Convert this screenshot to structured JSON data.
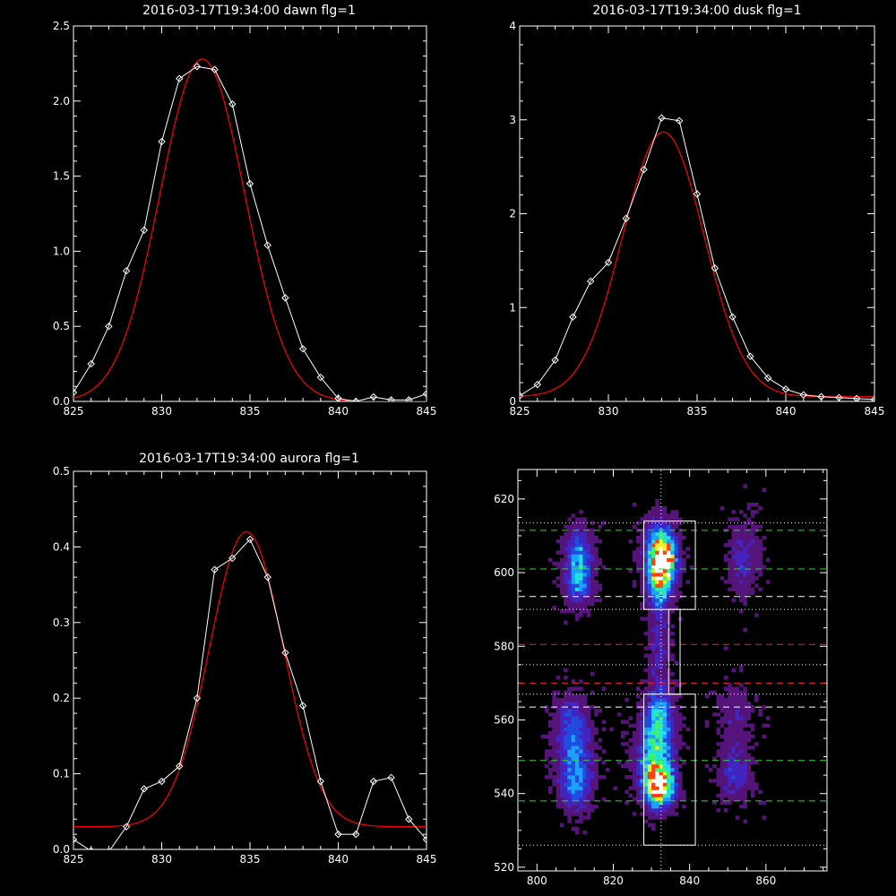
{
  "chart_data": [
    {
      "type": "line",
      "title": "2016-03-17T19:34:00 dawn flg=1",
      "xlim": [
        825,
        845
      ],
      "ylim": [
        0,
        2.5
      ],
      "xticks": [
        "825",
        "830",
        "835",
        "840",
        "845"
      ],
      "yticks": [
        "0.0",
        "0.5",
        "1.0",
        "1.5",
        "2.0",
        "2.5"
      ],
      "series": [
        {
          "color": "#ffffff",
          "marker": "diamond",
          "x": [
            825,
            826,
            827,
            828,
            829,
            830,
            831,
            832,
            833,
            834,
            835,
            836,
            837,
            838,
            839,
            840,
            841,
            842,
            843,
            844,
            845
          ],
          "y": [
            0.06,
            0.25,
            0.5,
            0.87,
            1.14,
            1.73,
            2.15,
            2.23,
            2.21,
            1.98,
            1.45,
            1.04,
            0.69,
            0.35,
            0.16,
            0.02,
            0.0,
            0.03,
            0.01,
            0.01,
            0.05
          ]
        },
        {
          "color": "#ff0000",
          "model": "gaussian",
          "amplitude": 2.28,
          "center": 832.3,
          "sigma": 2.4,
          "offset": 0.0
        }
      ]
    },
    {
      "type": "line",
      "title": "2016-03-17T19:34:00 dusk flg=1",
      "xlim": [
        825,
        845
      ],
      "ylim": [
        0,
        4
      ],
      "xticks": [
        "825",
        "830",
        "835",
        "840",
        "845"
      ],
      "yticks": [
        "0",
        "1",
        "2",
        "3",
        "4"
      ],
      "series": [
        {
          "color": "#ffffff",
          "marker": "diamond",
          "x": [
            825,
            826,
            827,
            828,
            829,
            830,
            831,
            832,
            833,
            834,
            835,
            836,
            837,
            838,
            839,
            840,
            841,
            842,
            843,
            844,
            845
          ],
          "y": [
            0.06,
            0.18,
            0.44,
            0.9,
            1.28,
            1.48,
            1.95,
            2.47,
            3.02,
            2.99,
            2.21,
            1.42,
            0.9,
            0.48,
            0.25,
            0.13,
            0.07,
            0.05,
            0.04,
            0.03,
            0.02
          ]
        },
        {
          "color": "#ff0000",
          "model": "gaussian",
          "amplitude": 2.82,
          "center": 833.1,
          "sigma": 2.3,
          "offset": 0.05
        }
      ]
    },
    {
      "type": "line",
      "title": "2016-03-17T19:34:00 aurora flg=1",
      "xlim": [
        825,
        845
      ],
      "ylim": [
        0,
        0.5
      ],
      "xticks": [
        "825",
        "830",
        "835",
        "840",
        "845"
      ],
      "yticks": [
        "0.0",
        "0.1",
        "0.2",
        "0.3",
        "0.4",
        "0.5"
      ],
      "series": [
        {
          "color": "#ffffff",
          "marker": "diamond",
          "x": [
            825,
            826,
            827,
            828,
            829,
            830,
            831,
            832,
            833,
            834,
            835,
            836,
            837,
            838,
            839,
            840,
            841,
            842,
            843,
            844,
            845
          ],
          "y": [
            0.013,
            -0.002,
            -0.003,
            0.03,
            0.08,
            0.09,
            0.11,
            0.2,
            0.37,
            0.385,
            0.41,
            0.36,
            0.26,
            0.19,
            0.09,
            0.02,
            0.02,
            0.09,
            0.095,
            0.04,
            0.013
          ]
        },
        {
          "color": "#ff0000",
          "model": "gaussian",
          "amplitude": 0.39,
          "center": 834.8,
          "sigma": 2.1,
          "offset": 0.03
        }
      ]
    },
    {
      "type": "heatmap",
      "title": "",
      "xlim": [
        795,
        876
      ],
      "ylim": [
        519,
        628
      ],
      "xticks": [
        "800",
        "820",
        "840",
        "860"
      ],
      "yticks": [
        "520",
        "540",
        "560",
        "580",
        "600",
        "620"
      ],
      "colormap": [
        "#000000",
        "#2a0a3a",
        "#55147a",
        "#4424c0",
        "#1f4de0",
        "#1ea0ff",
        "#20e0e0",
        "#40f070",
        "#f0f020",
        "#ff4010",
        "#ffffff"
      ],
      "blobs": [
        {
          "x": 811,
          "y": 604,
          "amp": 0.42,
          "sx": 2.2,
          "sy": 5.0
        },
        {
          "x": 811,
          "y": 597,
          "amp": 0.3,
          "sx": 2.2,
          "sy": 4.0
        },
        {
          "x": 810,
          "y": 550,
          "amp": 0.32,
          "sx": 3.2,
          "sy": 6.0
        },
        {
          "x": 809,
          "y": 560,
          "amp": 0.22,
          "sx": 2.6,
          "sy": 5.0
        },
        {
          "x": 810,
          "y": 541,
          "amp": 0.28,
          "sx": 2.5,
          "sy": 4.0
        },
        {
          "x": 833,
          "y": 603,
          "amp": 0.95,
          "sx": 2.2,
          "sy": 4.0
        },
        {
          "x": 832,
          "y": 607,
          "amp": 0.45,
          "sx": 2.6,
          "sy": 5.0
        },
        {
          "x": 832,
          "y": 596,
          "amp": 0.42,
          "sx": 2.2,
          "sy": 4.0
        },
        {
          "x": 832,
          "y": 542,
          "amp": 1.0,
          "sx": 2.4,
          "sy": 3.5
        },
        {
          "x": 831,
          "y": 550,
          "amp": 0.55,
          "sx": 3.0,
          "sy": 6.5
        },
        {
          "x": 832,
          "y": 561,
          "amp": 0.38,
          "sx": 2.4,
          "sy": 5.0
        },
        {
          "x": 832,
          "y": 580,
          "amp": 0.18,
          "sx": 1.8,
          "sy": 10.0
        },
        {
          "x": 854,
          "y": 604,
          "amp": 0.22,
          "sx": 2.5,
          "sy": 6.0
        },
        {
          "x": 852,
          "y": 546,
          "amp": 0.24,
          "sx": 2.8,
          "sy": 5.0
        },
        {
          "x": 852,
          "y": 562,
          "amp": 0.12,
          "sx": 3.0,
          "sy": 5.0
        }
      ],
      "boxes": [
        {
          "x0": 828,
          "x1": 841.5,
          "y0": 590,
          "y1": 614
        },
        {
          "x0": 828,
          "x1": 841.5,
          "y0": 526,
          "y1": 567
        },
        {
          "x0": 834.5,
          "x1": 837.5,
          "y0": 567,
          "y1": 590
        }
      ],
      "vline": {
        "x": 832.5,
        "color": "#ffffff",
        "style": "dotted"
      },
      "hlines": [
        {
          "y": 613.5,
          "color": "#ffffff",
          "style": "dotted"
        },
        {
          "y": 611.5,
          "color": "#22dd22",
          "style": "dashed"
        },
        {
          "y": 601,
          "color": "#22dd22",
          "style": "dashed"
        },
        {
          "y": 593.5,
          "color": "#ffffff",
          "style": "dashed"
        },
        {
          "y": 590,
          "color": "#ffffff",
          "style": "dotted"
        },
        {
          "y": 580.5,
          "color": "#ff2020",
          "style": "dashed"
        },
        {
          "y": 575,
          "color": "#ffffff",
          "style": "dotted"
        },
        {
          "y": 570,
          "color": "#ff2020",
          "style": "dashed"
        },
        {
          "y": 567,
          "color": "#ffffff",
          "style": "dotted"
        },
        {
          "y": 563.5,
          "color": "#ffffff",
          "style": "dashed"
        },
        {
          "y": 549,
          "color": "#22dd22",
          "style": "dashed"
        },
        {
          "y": 538,
          "color": "#22dd22",
          "style": "dashed"
        },
        {
          "y": 526,
          "color": "#ffffff",
          "style": "dotted"
        }
      ]
    }
  ]
}
